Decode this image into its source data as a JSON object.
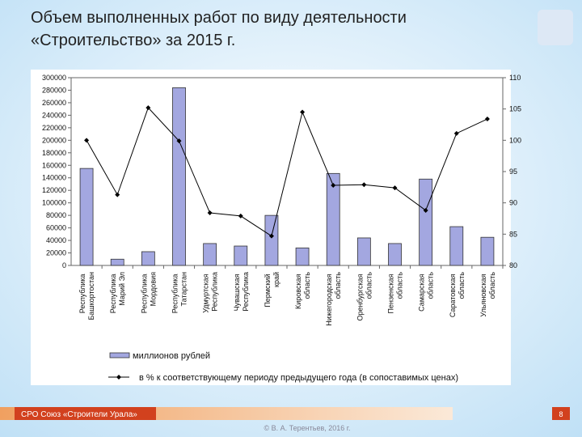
{
  "chart_data": {
    "type": "bar_line",
    "title": [
      "Объем выполненных работ по виду деятельности",
      "«Строительство» за 2015 г."
    ],
    "categories": [
      "Республика Башкортостан",
      "Республика Марий Эл",
      "Республика Мордовия",
      "Республика Татарстан",
      "Удмуртская Республика",
      "Чувашская Республика",
      "Пермский край",
      "Кировская область",
      "Нижегородская область",
      "Оренбургская область",
      "Пензенская область",
      "Самарская область",
      "Саратовская область",
      "Ульяновская область"
    ],
    "series": [
      {
        "name": "миллионов рублей",
        "color": "#a3a7e0",
        "type": "bar",
        "values": [
          155000,
          10000,
          22000,
          284000,
          35000,
          31000,
          80000,
          28000,
          147000,
          44000,
          35000,
          138000,
          62000,
          45000
        ]
      },
      {
        "name": "в % к соответствующему периоду предыдущего года (в сопоставимых ценах)",
        "color": "#000000",
        "type": "line",
        "axis": "y2",
        "values": [
          100.0,
          91.3,
          105.2,
          99.9,
          88.4,
          87.9,
          84.7,
          104.5,
          92.8,
          92.9,
          92.4,
          88.8,
          101.1,
          103.4
        ]
      }
    ],
    "ylim": [
      0,
      300000
    ],
    "yticks": [
      0,
      20000,
      40000,
      60000,
      80000,
      100000,
      120000,
      140000,
      160000,
      180000,
      200000,
      220000,
      240000,
      260000,
      280000,
      300000
    ],
    "y2lim": [
      80,
      110
    ],
    "y2ticks": [
      80,
      85,
      90,
      95,
      100,
      105,
      110
    ]
  },
  "footer": {
    "organization": "СРО Союз «Строители Урала»",
    "page": "8",
    "copyright": "© В. А. Терентьев, 2016 г."
  }
}
